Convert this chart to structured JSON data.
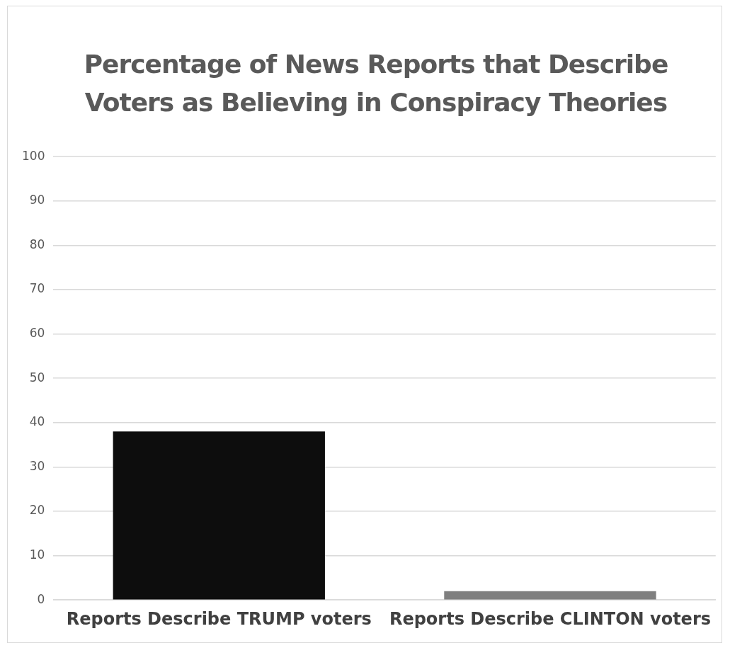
{
  "chart_data": {
    "type": "bar",
    "title": "Percentage of News Reports that Describe Voters as Believing in Conspiracy Theories",
    "categories": [
      "Reports Describe TRUMP voters",
      "Reports Describe CLINTON voters"
    ],
    "values": [
      38,
      2
    ],
    "colors": [
      "#0d0d0d",
      "#7f7f7f"
    ],
    "ylim": [
      0,
      100
    ],
    "yticks": [
      0,
      10,
      20,
      30,
      40,
      50,
      60,
      70,
      80,
      90,
      100
    ],
    "grid": "y"
  }
}
